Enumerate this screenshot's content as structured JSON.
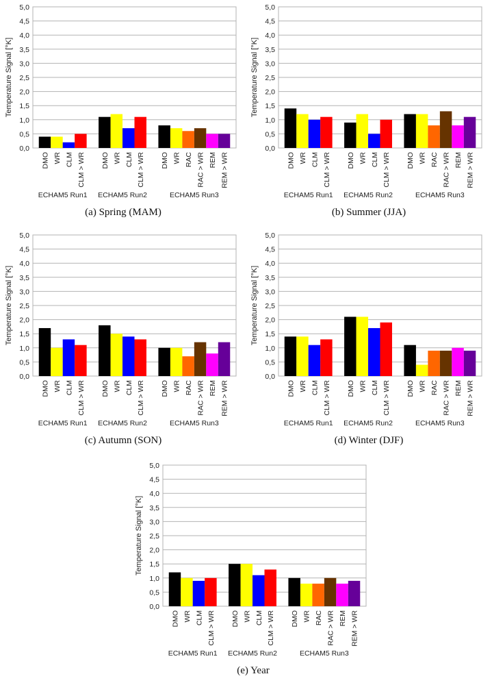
{
  "figure": {
    "captions": [
      "(a)  Spring (MAM)",
      "(b)  Summer (JJA)",
      "(c)  Autumn (SON)",
      "(d)  Winter (DJF)",
      "(e)  Year"
    ]
  },
  "colors": {
    "DMO": "#000000",
    "WR": "#ffff00",
    "CLM": "#0000ff",
    "CLM > WR": "#ff0000",
    "RAC": "#ff6600",
    "RAC > WR": "#663300",
    "REM": "#ff00ff",
    "REM > WR": "#660099"
  },
  "chart_data": [
    {
      "type": "bar",
      "caption": "(a)  Spring (MAM)",
      "ylabel": "Temperature Signal [°K]",
      "ylim": [
        0,
        5
      ],
      "yticks": [
        "0,0",
        "0,5",
        "1,0",
        "1,5",
        "2,0",
        "2,5",
        "3,0",
        "3,5",
        "4,0",
        "4,5",
        "5,0"
      ],
      "grid": true,
      "groups": [
        {
          "name": "ECHAM5 Run1",
          "categories": [
            "DMO",
            "WR",
            "CLM",
            "CLM > WR"
          ],
          "values": [
            0.4,
            0.4,
            0.2,
            0.5
          ]
        },
        {
          "name": "ECHAM5 Run2",
          "categories": [
            "DMO",
            "WR",
            "CLM",
            "CLM > WR"
          ],
          "values": [
            1.1,
            1.2,
            0.7,
            1.1
          ]
        },
        {
          "name": "ECHAM5 Run3",
          "categories": [
            "DMO",
            "WR",
            "RAC",
            "RAC > WR",
            "REM",
            "REM > WR"
          ],
          "values": [
            0.8,
            0.7,
            0.6,
            0.7,
            0.5,
            0.5
          ]
        }
      ]
    },
    {
      "type": "bar",
      "caption": "(b)  Summer (JJA)",
      "ylabel": "Temperature Signal [°K]",
      "ylim": [
        0,
        5
      ],
      "yticks": [
        "0,0",
        "0,5",
        "1,0",
        "1,5",
        "2,0",
        "2,5",
        "3,0",
        "3,5",
        "4,0",
        "4,5",
        "5,0"
      ],
      "grid": true,
      "groups": [
        {
          "name": "ECHAM5 Run1",
          "categories": [
            "DMO",
            "WR",
            "CLM",
            "CLM > WR"
          ],
          "values": [
            1.4,
            1.2,
            1.0,
            1.1
          ]
        },
        {
          "name": "ECHAM5 Run2",
          "categories": [
            "DMO",
            "WR",
            "CLM",
            "CLM > WR"
          ],
          "values": [
            0.9,
            1.2,
            0.5,
            1.0
          ]
        },
        {
          "name": "ECHAM5 Run3",
          "categories": [
            "DMO",
            "WR",
            "RAC",
            "RAC > WR",
            "REM",
            "REM > WR"
          ],
          "values": [
            1.2,
            1.2,
            0.8,
            1.3,
            0.8,
            1.1
          ]
        }
      ]
    },
    {
      "type": "bar",
      "caption": "(c)  Autumn (SON)",
      "ylabel": "Temperature Signal [°K]",
      "ylim": [
        0,
        5
      ],
      "yticks": [
        "0,0",
        "0,5",
        "1,0",
        "1,5",
        "2,0",
        "2,5",
        "3,0",
        "3,5",
        "4,0",
        "4,5",
        "5,0"
      ],
      "grid": true,
      "groups": [
        {
          "name": "ECHAM5 Run1",
          "categories": [
            "DMO",
            "WR",
            "CLM",
            "CLM > WR"
          ],
          "values": [
            1.7,
            1.0,
            1.3,
            1.1
          ]
        },
        {
          "name": "ECHAM5 Run2",
          "categories": [
            "DMO",
            "WR",
            "CLM",
            "CLM > WR"
          ],
          "values": [
            1.8,
            1.5,
            1.4,
            1.3
          ]
        },
        {
          "name": "ECHAM5 Run3",
          "categories": [
            "DMO",
            "WR",
            "RAC",
            "RAC > WR",
            "REM",
            "REM > WR"
          ],
          "values": [
            1.0,
            1.0,
            0.7,
            1.2,
            0.8,
            1.2
          ]
        }
      ]
    },
    {
      "type": "bar",
      "caption": "(d)  Winter (DJF)",
      "ylabel": "Temperature Signal [°K]",
      "ylim": [
        0,
        5
      ],
      "yticks": [
        "0,0",
        "0,5",
        "1,0",
        "1,5",
        "2,0",
        "2,5",
        "3,0",
        "3,5",
        "4,0",
        "4,5",
        "5,0"
      ],
      "grid": true,
      "groups": [
        {
          "name": "ECHAM5 Run1",
          "categories": [
            "DMO",
            "WR",
            "CLM",
            "CLM > WR"
          ],
          "values": [
            1.4,
            1.4,
            1.1,
            1.3
          ]
        },
        {
          "name": "ECHAM5 Run2",
          "categories": [
            "DMO",
            "WR",
            "CLM",
            "CLM > WR"
          ],
          "values": [
            2.1,
            2.1,
            1.7,
            1.9
          ]
        },
        {
          "name": "ECHAM5 Run3",
          "categories": [
            "DMO",
            "WR",
            "RAC",
            "RAC > WR",
            "REM",
            "REM > WR"
          ],
          "values": [
            1.1,
            0.4,
            0.9,
            0.9,
            1.0,
            0.9
          ]
        }
      ]
    },
    {
      "type": "bar",
      "caption": "(e)  Year",
      "ylabel": "Temperature Signal [°K]",
      "ylim": [
        0,
        5
      ],
      "yticks": [
        "0,0",
        "0,5",
        "1,0",
        "1,5",
        "2,0",
        "2,5",
        "3,0",
        "3,5",
        "4,0",
        "4,5",
        "5,0"
      ],
      "grid": true,
      "groups": [
        {
          "name": "ECHAM5 Run1",
          "categories": [
            "DMO",
            "WR",
            "CLM",
            "CLM > WR"
          ],
          "values": [
            1.2,
            1.0,
            0.9,
            1.0
          ]
        },
        {
          "name": "ECHAM5 Run2",
          "categories": [
            "DMO",
            "WR",
            "CLM",
            "CLM > WR"
          ],
          "values": [
            1.5,
            1.5,
            1.1,
            1.3
          ]
        },
        {
          "name": "ECHAM5 Run3",
          "categories": [
            "DMO",
            "WR",
            "RAC",
            "RAC > WR",
            "REM",
            "REM > WR"
          ],
          "values": [
            1.0,
            0.8,
            0.8,
            1.0,
            0.8,
            0.9
          ]
        }
      ]
    }
  ]
}
